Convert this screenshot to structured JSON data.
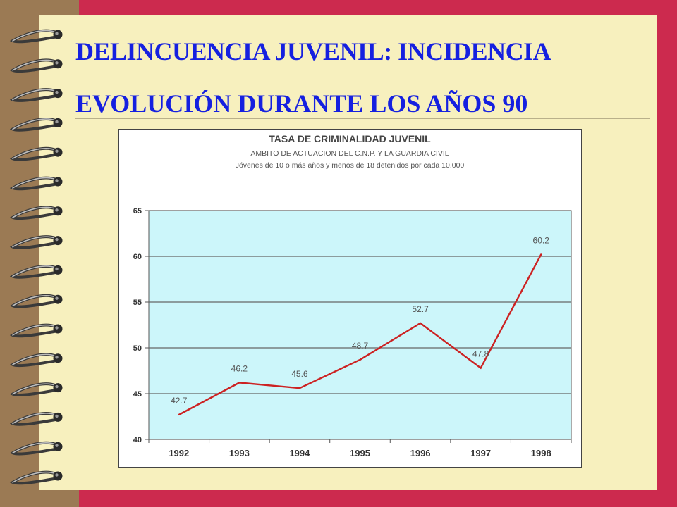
{
  "slide": {
    "title_line1": "DELINCUENCIA JUVENIL: INCIDENCIA",
    "title_line2": "EVOLUCIÓN DURANTE LOS AÑOS 90"
  },
  "colors": {
    "background_red": "#cc2a4e",
    "paper": "#f7f0be",
    "title_blue": "#1520e0",
    "plot_fill": "#ccf6fa",
    "line_red": "#cc2222"
  },
  "chart_data": {
    "type": "line",
    "title": "TASA  DE CRIMINALIDAD JUVENIL",
    "subtitle1": "AMBITO DE ACTUACION DEL C.N.P. Y LA GUARDIA CIVIL",
    "subtitle2": "Jóvenes de 10 o más años y menos de 18 detenidos por cada 10.000",
    "categories": [
      "1992",
      "1993",
      "1994",
      "1995",
      "1996",
      "1997",
      "1998"
    ],
    "values": [
      42.7,
      46.2,
      45.6,
      48.7,
      52.7,
      47.8,
      60.2
    ],
    "value_labels": [
      "42.7",
      "46.2",
      "45.6",
      "48.7",
      "52.7",
      "47.8",
      "60.2"
    ],
    "ylim": [
      40,
      65
    ],
    "yticks": [
      40,
      45,
      50,
      55,
      60,
      65
    ],
    "grid": true,
    "legend": "none"
  }
}
